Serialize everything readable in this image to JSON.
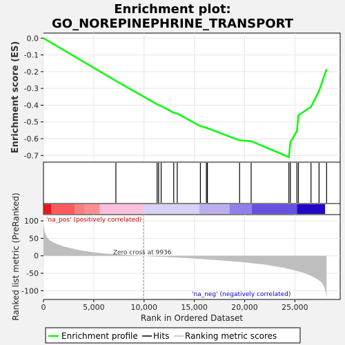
{
  "title_line1": "Enrichment plot:",
  "title_line2": "GO_NOREPINEPHRINE_TRANSPORT",
  "colors": {
    "es_line": "#00ff00",
    "hits": "#000000",
    "ranked_fill": "#bebebe",
    "pos_label": "#cc0000",
    "neg_label": "#0000cc",
    "zero_cross": "#999999"
  },
  "chart_data": [
    {
      "type": "line",
      "name": "enrichment-score",
      "ylabel": "Enrichment score (ES)",
      "ylim": [
        -0.74,
        0.03
      ],
      "yticks": [
        0.0,
        -0.1,
        -0.2,
        -0.3,
        -0.4,
        -0.5,
        -0.6,
        -0.7
      ],
      "ytick_labels": [
        "0.0",
        "-0.1",
        "-0.2",
        "-0.3",
        "-0.4",
        "-0.5",
        "-0.6",
        "-0.7"
      ],
      "xlim": [
        0,
        29500
      ],
      "grid": true,
      "x": [
        0,
        7200,
        7200,
        11300,
        11300,
        11450,
        11450,
        11700,
        11700,
        12950,
        12950,
        13300,
        13300,
        15600,
        15600,
        16200,
        16200,
        19500,
        19500,
        20650,
        20650,
        24400,
        24400,
        24550,
        24550,
        25200,
        25200,
        25350,
        25350,
        26600,
        26600,
        27400,
        27400,
        28150,
        28150
      ],
      "y": [
        0.0,
        -0.255,
        -0.255,
        -0.395,
        -0.395,
        -0.4,
        -0.4,
        -0.405,
        -0.405,
        -0.445,
        -0.445,
        -0.45,
        -0.45,
        -0.525,
        -0.525,
        -0.535,
        -0.535,
        -0.61,
        -0.61,
        -0.615,
        -0.615,
        -0.71,
        -0.71,
        -0.62,
        -0.62,
        -0.555,
        -0.555,
        -0.46,
        -0.46,
        -0.41,
        -0.41,
        -0.315,
        -0.315,
        -0.185,
        -0.185
      ]
    },
    {
      "type": "scatter",
      "name": "hits",
      "x": [
        7200,
        11300,
        11450,
        11700,
        12950,
        13300,
        15600,
        16200,
        16300,
        19500,
        20650,
        24400,
        24550,
        25200,
        25350,
        26600,
        27400,
        28150
      ]
    },
    {
      "type": "heatmap",
      "name": "rank-color-bar",
      "segments": [
        {
          "from": 0,
          "to": 800,
          "color": "#e8161c"
        },
        {
          "from": 800,
          "to": 3100,
          "color": "#fb5a5d"
        },
        {
          "from": 3100,
          "to": 4100,
          "color": "#fd7c7f"
        },
        {
          "from": 4100,
          "to": 5600,
          "color": "#fd8f92"
        },
        {
          "from": 5600,
          "to": 10000,
          "color": "#fcc0de"
        },
        {
          "from": 10000,
          "to": 15500,
          "color": "#d8d0f5"
        },
        {
          "from": 15500,
          "to": 18500,
          "color": "#bcaeee"
        },
        {
          "from": 18500,
          "to": 20700,
          "color": "#8f80ea"
        },
        {
          "from": 20700,
          "to": 25200,
          "color": "#6652e2"
        },
        {
          "from": 25200,
          "to": 28000,
          "color": "#2208c6"
        }
      ]
    },
    {
      "type": "area",
      "name": "ranked-list-metric",
      "ylabel": "Ranked list metric (PreRanked)",
      "xlabel": "Rank in Ordered Dataset",
      "ylim": [
        -125,
        118
      ],
      "yticks": [
        100,
        50,
        0,
        -50,
        -100
      ],
      "ytick_labels": [
        "100",
        "50",
        "0",
        "-50",
        "-100"
      ],
      "xticks": [
        0,
        5000,
        10000,
        15000,
        20000,
        25000
      ],
      "xtick_labels": [
        "0",
        "5,000",
        "10,000",
        "15,000",
        "20,000",
        "25,000"
      ],
      "xlim": [
        0,
        29500
      ],
      "grid": true,
      "x": [
        0,
        100,
        300,
        600,
        1000,
        1500,
        2000,
        3000,
        4000,
        5000,
        6000,
        7000,
        8000,
        9000,
        9936,
        11000,
        12000,
        14000,
        16000,
        18000,
        20000,
        22000,
        23000,
        24000,
        25000,
        25800,
        26500,
        27000,
        27400,
        27700,
        27900,
        28050,
        28150
      ],
      "y": [
        95,
        70,
        55,
        45,
        38,
        32,
        27,
        20,
        14,
        10,
        7,
        5,
        3,
        1.5,
        0,
        -2,
        -3,
        -6,
        -10,
        -14,
        -19,
        -25,
        -30,
        -35,
        -42,
        -48,
        -56,
        -63,
        -70,
        -78,
        -88,
        -103,
        -122
      ],
      "zero_cross_label": "Zero cross at 9936",
      "zero_cross_x": 9936,
      "pos_label": "'na_pos' (positively correlated)",
      "neg_label": "'na_neg' (negatively correlated)"
    }
  ],
  "legend": {
    "items": [
      {
        "label": "Enrichment profile"
      },
      {
        "label": "Hits"
      },
      {
        "label": "Ranking metric scores"
      }
    ]
  }
}
